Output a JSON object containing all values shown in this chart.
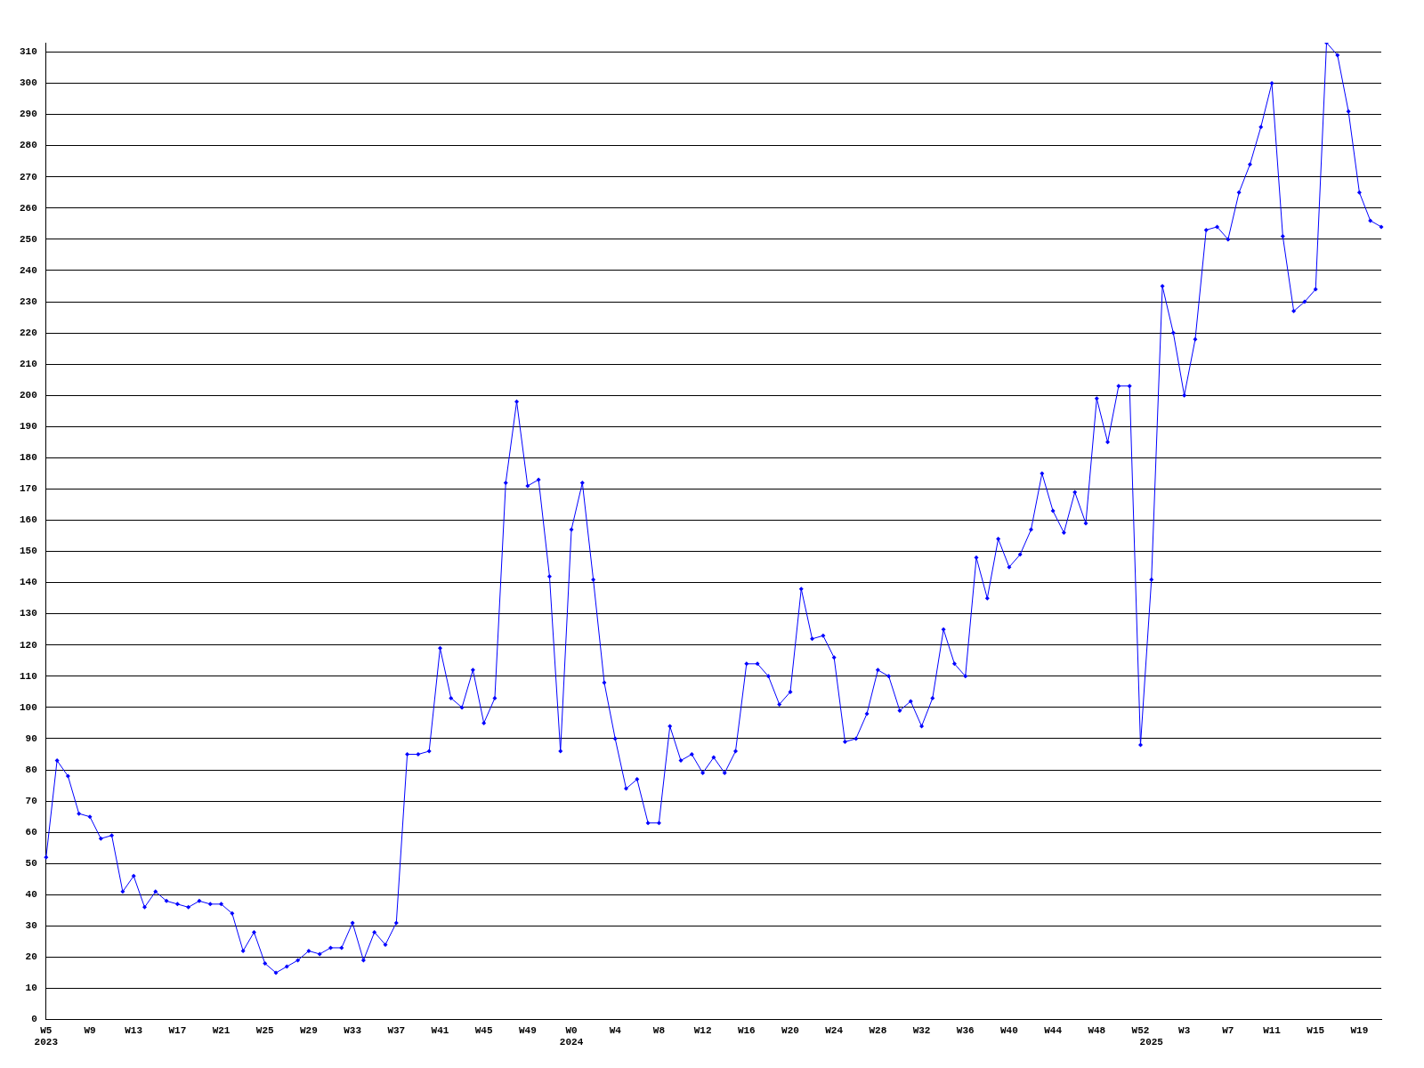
{
  "chart_data": {
    "type": "line",
    "categories": [
      "W5\n2023",
      null,
      null,
      null,
      "W9",
      null,
      null,
      null,
      "W13",
      null,
      null,
      null,
      "W17",
      null,
      null,
      null,
      "W21",
      null,
      null,
      null,
      "W25",
      null,
      null,
      null,
      "W29",
      null,
      null,
      null,
      "W33",
      null,
      null,
      null,
      "W37",
      null,
      null,
      null,
      "W41",
      null,
      null,
      null,
      "W45",
      null,
      null,
      null,
      "W49",
      null,
      null,
      null,
      "W0\n2024",
      null,
      null,
      null,
      "W4",
      null,
      null,
      null,
      "W8",
      null,
      null,
      null,
      "W12",
      null,
      null,
      null,
      "W16",
      null,
      null,
      null,
      "W20",
      null,
      null,
      null,
      "W24",
      null,
      null,
      null,
      "W28",
      null,
      null,
      null,
      "W32",
      null,
      null,
      null,
      "W36",
      null,
      null,
      null,
      "W40",
      null,
      null,
      null,
      "W44",
      null,
      null,
      null,
      "W48",
      null,
      null,
      null,
      "W52",
      "\n2025",
      null,
      null,
      "W3",
      null,
      null,
      null,
      "W7",
      null,
      null,
      null,
      "W11",
      null,
      null,
      null,
      "W15",
      null,
      null,
      null,
      "W19",
      null,
      null
    ],
    "values": [
      52,
      83,
      78,
      66,
      65,
      58,
      59,
      41,
      46,
      36,
      41,
      38,
      37,
      36,
      38,
      37,
      37,
      34,
      22,
      28,
      18,
      15,
      17,
      19,
      22,
      21,
      23,
      23,
      31,
      19,
      28,
      24,
      31,
      85,
      85,
      86,
      119,
      103,
      100,
      112,
      95,
      103,
      172,
      198,
      171,
      173,
      142,
      86,
      157,
      172,
      141,
      108,
      90,
      74,
      77,
      63,
      63,
      94,
      83,
      85,
      79,
      84,
      79,
      86,
      114,
      114,
      110,
      101,
      105,
      138,
      122,
      123,
      116,
      89,
      90,
      98,
      112,
      110,
      99,
      102,
      94,
      103,
      125,
      114,
      110,
      148,
      135,
      154,
      145,
      149,
      157,
      175,
      163,
      156,
      169,
      159,
      199,
      185,
      203,
      203,
      88,
      141,
      235,
      220,
      200,
      218,
      253,
      254,
      250,
      265,
      274,
      286,
      300,
      251,
      227,
      230,
      234,
      313,
      309,
      291,
      265,
      256,
      254
    ],
    "color": "#0000ff",
    "ylim": [
      0,
      313
    ],
    "yticks": [
      0,
      10,
      20,
      30,
      40,
      50,
      60,
      70,
      80,
      90,
      100,
      110,
      120,
      130,
      140,
      150,
      160,
      170,
      180,
      190,
      200,
      210,
      220,
      230,
      240,
      250,
      260,
      270,
      280,
      290,
      300,
      310
    ],
    "grid": "y",
    "marker": "diamond",
    "line_style": "solid"
  }
}
